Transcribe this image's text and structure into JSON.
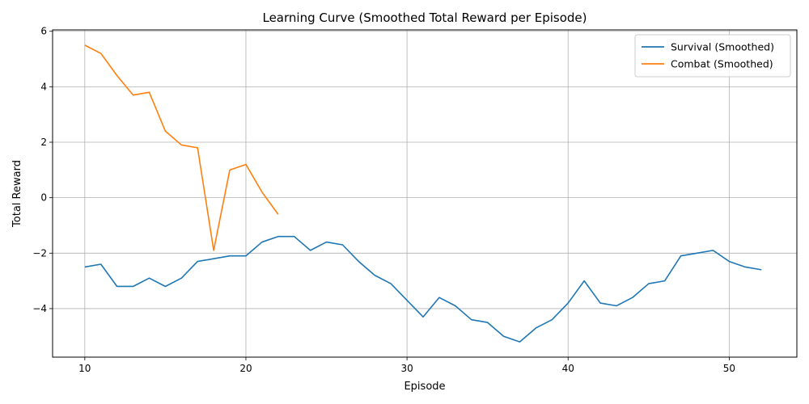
{
  "chart_data": {
    "type": "line",
    "title": "Learning Curve (Smoothed Total Reward per Episode)",
    "xlabel": "Episode",
    "ylabel": "Total Reward",
    "xlim": [
      8,
      54.2
    ],
    "ylim": [
      -5.75,
      6.05
    ],
    "xticks": [
      10,
      20,
      30,
      40,
      50
    ],
    "yticks": [
      -4,
      -2,
      0,
      2,
      4,
      6
    ],
    "grid": true,
    "legend_position": "top-right",
    "series": [
      {
        "name": "Survival (Smoothed)",
        "color": "#1f77b4",
        "x": [
          10,
          11,
          12,
          13,
          14,
          15,
          16,
          17,
          18,
          19,
          20,
          21,
          22,
          23,
          24,
          25,
          26,
          27,
          28,
          29,
          30,
          31,
          32,
          33,
          34,
          35,
          36,
          37,
          38,
          39,
          40,
          41,
          42,
          43,
          44,
          45,
          46,
          47,
          48,
          49,
          50,
          51,
          52
        ],
        "values": [
          -2.5,
          -2.4,
          -3.2,
          -3.2,
          -2.9,
          -3.2,
          -2.9,
          -2.3,
          -2.2,
          -2.1,
          -2.1,
          -1.6,
          -1.4,
          -1.4,
          -1.9,
          -1.6,
          -1.7,
          -2.3,
          -2.8,
          -3.1,
          -3.7,
          -4.3,
          -3.6,
          -3.9,
          -4.4,
          -4.5,
          -5.0,
          -5.2,
          -4.7,
          -4.4,
          -3.8,
          -3.0,
          -3.8,
          -3.9,
          -3.6,
          -3.1,
          -3.0,
          -2.1,
          -2.0,
          -1.9,
          -2.3,
          -2.5,
          -2.6
        ]
      },
      {
        "name": "Combat (Smoothed)",
        "color": "#ff7f0e",
        "x": [
          10,
          11,
          12,
          13,
          14,
          15,
          16,
          17,
          18,
          19,
          20,
          21,
          22
        ],
        "values": [
          5.5,
          5.2,
          4.4,
          3.7,
          3.8,
          2.4,
          1.9,
          1.8,
          -1.9,
          1.0,
          1.2,
          0.2,
          -0.6
        ]
      }
    ]
  }
}
